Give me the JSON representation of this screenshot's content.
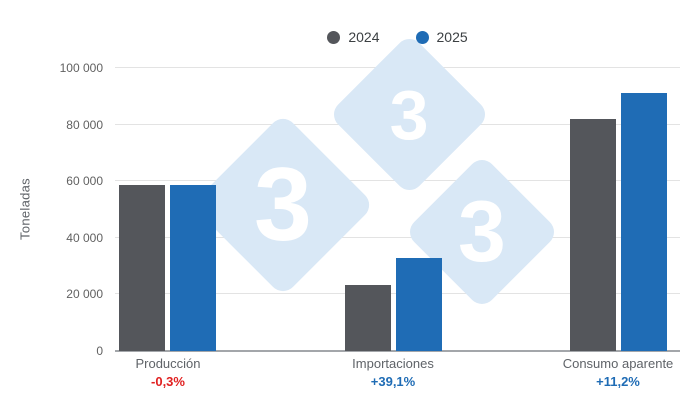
{
  "legend": [
    {
      "label": "2024",
      "color": "#54565b"
    },
    {
      "label": "2025",
      "color": "#1f6cb5"
    }
  ],
  "chart_data": {
    "type": "bar",
    "categories": [
      "Producción",
      "Importaciones",
      "Consumo aparente"
    ],
    "series": [
      {
        "name": "2024",
        "color": "#54565b",
        "values": [
          58800,
          23500,
          82000
        ]
      },
      {
        "name": "2025",
        "color": "#1f6cb5",
        "values": [
          58600,
          32700,
          91200
        ]
      }
    ],
    "deltas": [
      {
        "text": "-0,3%",
        "color": "#e02020"
      },
      {
        "text": "+39,1%",
        "color": "#1f6cb5"
      },
      {
        "text": "+11,2%",
        "color": "#1f6cb5"
      }
    ],
    "title": "",
    "xlabel": "",
    "ylabel": "Toneladas",
    "ylim": [
      0,
      100000
    ],
    "yticks": [
      "0",
      "20 000",
      "40 000",
      "60 000",
      "80 000",
      "100 000"
    ],
    "grid": "horizontal",
    "legend_position": "top-center"
  },
  "watermark": {
    "digit": "3",
    "color": "#d9e8f6",
    "digit_color": "#ffffff"
  }
}
